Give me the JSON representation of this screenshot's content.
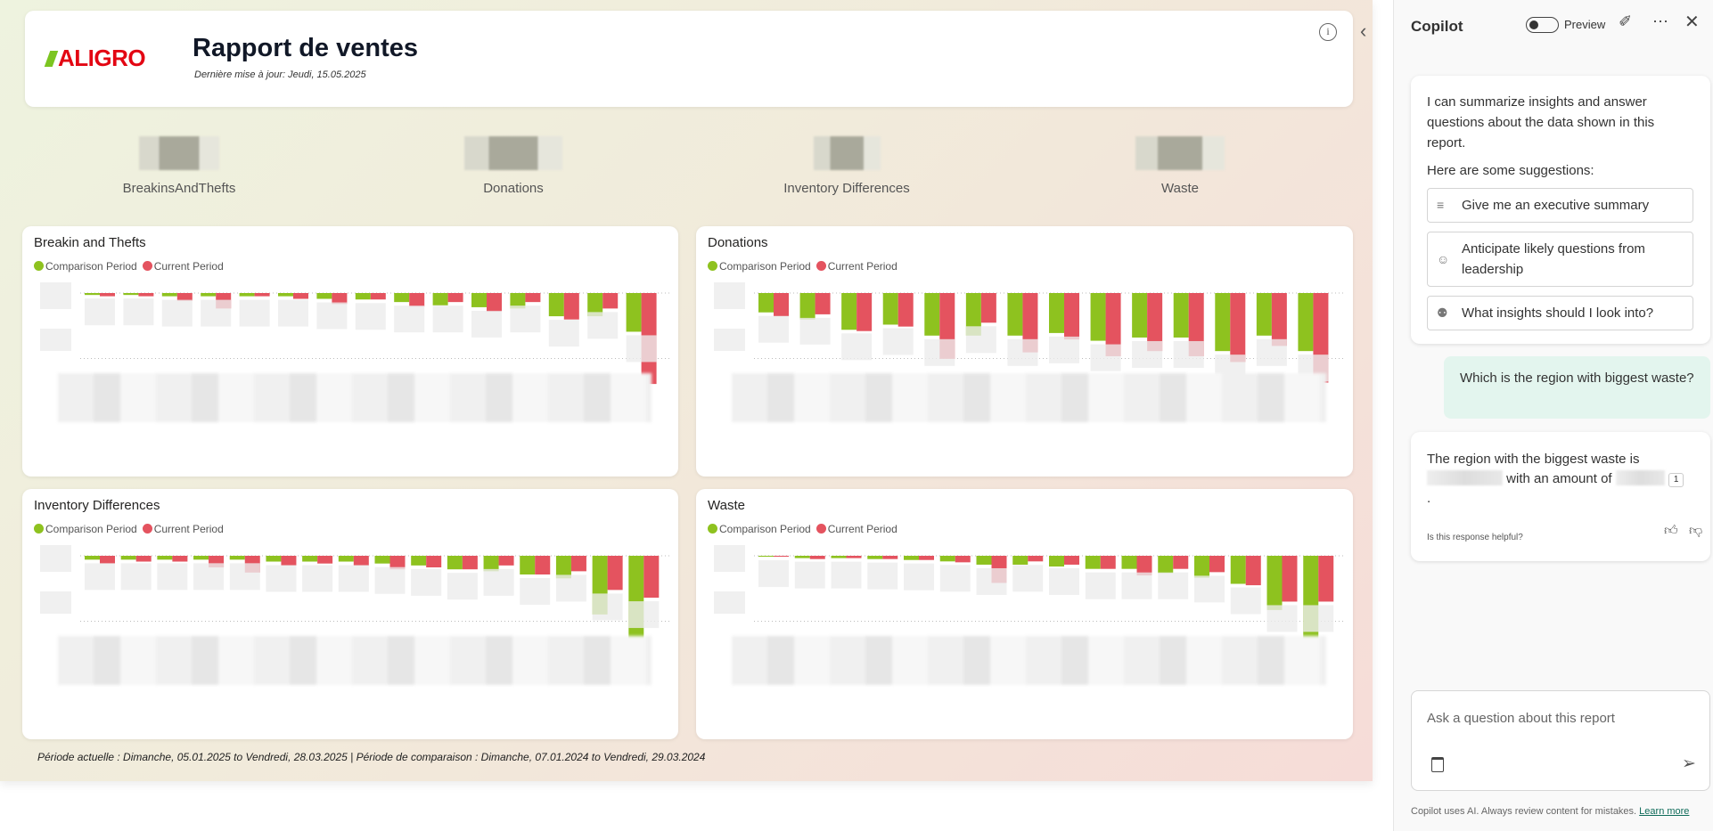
{
  "report": {
    "logo_text": "ALIGRO",
    "title": "Rapport de ventes",
    "last_update": "Dernière mise à jour: Jeudi, 15.05.2025",
    "info_icon": "i",
    "kpis": [
      {
        "label": "BreakinsAndThefts"
      },
      {
        "label": "Donations"
      },
      {
        "label": "Inventory Differences"
      },
      {
        "label": "Waste"
      }
    ],
    "legend": {
      "comparison": "Comparison Period",
      "current": "Current Period"
    },
    "colors": {
      "comparison": "#8ec21f",
      "current": "#e4535f"
    },
    "footer": "Période actuelle : Dimanche, 05.01.2025 to Vendredi, 28.03.2025 | Période de comparaison : Dimanche, 07.01.2024 to Vendredi, 29.03.2024"
  },
  "chart_data": [
    {
      "type": "bar",
      "title": "Breakin and Thefts",
      "ylim": [
        -145,
        0
      ],
      "series": [
        {
          "name": "Comparison Period",
          "values": [
            -3,
            -3,
            -5,
            -5,
            -5,
            -5,
            -9,
            -10,
            -14,
            -19,
            -22,
            -24,
            -36,
            -36,
            -60
          ]
        },
        {
          "name": "Current Period",
          "values": [
            -5,
            -5,
            -12,
            -24,
            -5,
            -9,
            -17,
            -10,
            -21,
            -14,
            -29,
            -14,
            -41,
            -24,
            -141
          ]
        }
      ]
    },
    {
      "type": "bar",
      "title": "Donations",
      "ylim": [
        -145,
        0
      ],
      "series": [
        {
          "name": "Comparison Period",
          "values": [
            -30,
            -41,
            -57,
            -49,
            -66,
            -66,
            -66,
            -62,
            -74,
            -69,
            -69,
            -90,
            -66,
            -90
          ]
        },
        {
          "name": "Current Period",
          "values": [
            -36,
            -33,
            -59,
            -52,
            -102,
            -46,
            -92,
            -72,
            -98,
            -90,
            -98,
            -107,
            -82,
            -139
          ]
        }
      ]
    },
    {
      "type": "bar",
      "title": "Inventory Differences",
      "ylim": [
        -145,
        0
      ],
      "series": [
        {
          "name": "Comparison Period",
          "values": [
            -6,
            -6,
            -6,
            -6,
            -6,
            -9,
            -9,
            -9,
            -12,
            -15,
            -21,
            -24,
            -29,
            -35,
            -91,
            -132
          ]
        },
        {
          "name": "Current Period",
          "values": [
            -12,
            -9,
            -9,
            -18,
            -26,
            -15,
            -12,
            -15,
            -21,
            -18,
            -21,
            -15,
            -29,
            -24,
            -53,
            -65
          ]
        }
      ]
    },
    {
      "type": "bar",
      "title": "Waste",
      "ylim": [
        -200,
        0
      ],
      "series": [
        {
          "name": "Comparison Period",
          "values": [
            -2,
            -5,
            -5,
            -7,
            -9,
            -12,
            -19,
            -19,
            -23,
            -28,
            -28,
            -37,
            -47,
            -60,
            -116,
            -191
          ]
        },
        {
          "name": "Current Period",
          "values": [
            -2,
            -7,
            -5,
            -7,
            -9,
            -14,
            -58,
            -12,
            -19,
            -28,
            -42,
            -28,
            -35,
            -63,
            -98,
            -98
          ]
        }
      ]
    }
  ],
  "copilot": {
    "title": "Copilot",
    "preview_label": "Preview",
    "intro": "I can summarize insights and answer questions about the data shown in this report.",
    "suggestions_label": "Here are some suggestions:",
    "suggestions": [
      {
        "label": "Give me an executive summary"
      },
      {
        "label": "Anticipate likely questions from leadership"
      },
      {
        "label": "What insights should I look into?"
      }
    ],
    "user_question": "Which is the region with biggest waste?",
    "answer_part1": "The region with the biggest waste is",
    "answer_part2": "with an amount of",
    "citation": "1",
    "answer_end": ".",
    "helpful_prompt": "Is this response helpful?",
    "input_placeholder": "Ask a question about this report",
    "disclaimer": "Copilot uses AI. Always review content for mistakes.",
    "learn_more": "Learn more"
  }
}
